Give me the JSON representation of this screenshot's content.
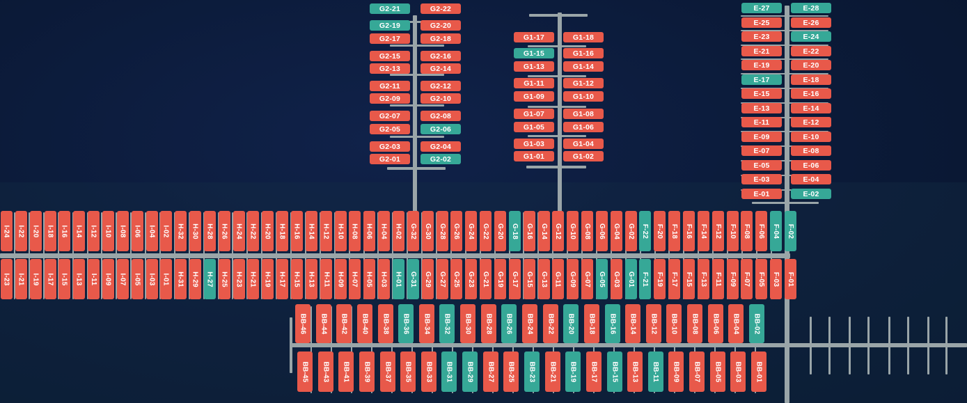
{
  "colors": {
    "occupied": "#e8594a",
    "available": "#36a897",
    "background": "#0b1a36",
    "dock": "#9aa5a8"
  },
  "legend_note": "",
  "slips": {
    "G2": [
      {
        "label": "G2-21",
        "status": "available"
      },
      {
        "label": "G2-22",
        "status": "occupied"
      },
      {
        "label": "G2-19",
        "status": "available"
      },
      {
        "label": "G2-20",
        "status": "occupied"
      },
      {
        "label": "G2-17",
        "status": "occupied"
      },
      {
        "label": "G2-18",
        "status": "occupied"
      },
      {
        "label": "G2-15",
        "status": "occupied"
      },
      {
        "label": "G2-16",
        "status": "occupied"
      },
      {
        "label": "G2-13",
        "status": "occupied"
      },
      {
        "label": "G2-14",
        "status": "occupied"
      },
      {
        "label": "G2-11",
        "status": "occupied"
      },
      {
        "label": "G2-12",
        "status": "occupied"
      },
      {
        "label": "G2-09",
        "status": "occupied"
      },
      {
        "label": "G2-10",
        "status": "occupied"
      },
      {
        "label": "G2-07",
        "status": "occupied"
      },
      {
        "label": "G2-08",
        "status": "occupied"
      },
      {
        "label": "G2-05",
        "status": "occupied"
      },
      {
        "label": "G2-06",
        "status": "available"
      },
      {
        "label": "G2-03",
        "status": "occupied"
      },
      {
        "label": "G2-04",
        "status": "occupied"
      },
      {
        "label": "G2-01",
        "status": "occupied"
      },
      {
        "label": "G2-02",
        "status": "available"
      }
    ],
    "G1": [
      {
        "label": "G1-17",
        "status": "occupied"
      },
      {
        "label": "G1-18",
        "status": "occupied"
      },
      {
        "label": "G1-15",
        "status": "available"
      },
      {
        "label": "G1-16",
        "status": "occupied"
      },
      {
        "label": "G1-13",
        "status": "occupied"
      },
      {
        "label": "G1-14",
        "status": "occupied"
      },
      {
        "label": "G1-11",
        "status": "occupied"
      },
      {
        "label": "G1-12",
        "status": "occupied"
      },
      {
        "label": "G1-09",
        "status": "occupied"
      },
      {
        "label": "G1-10",
        "status": "occupied"
      },
      {
        "label": "G1-07",
        "status": "occupied"
      },
      {
        "label": "G1-08",
        "status": "occupied"
      },
      {
        "label": "G1-05",
        "status": "occupied"
      },
      {
        "label": "G1-06",
        "status": "occupied"
      },
      {
        "label": "G1-03",
        "status": "occupied"
      },
      {
        "label": "G1-04",
        "status": "occupied"
      },
      {
        "label": "G1-01",
        "status": "occupied"
      },
      {
        "label": "G1-02",
        "status": "occupied"
      }
    ],
    "E": [
      {
        "label": "E-27",
        "status": "available"
      },
      {
        "label": "E-28",
        "status": "available"
      },
      {
        "label": "E-25",
        "status": "occupied"
      },
      {
        "label": "E-26",
        "status": "occupied"
      },
      {
        "label": "E-23",
        "status": "occupied"
      },
      {
        "label": "E-24",
        "status": "available"
      },
      {
        "label": "E-21",
        "status": "occupied"
      },
      {
        "label": "E-22",
        "status": "occupied"
      },
      {
        "label": "E-19",
        "status": "occupied"
      },
      {
        "label": "E-20",
        "status": "occupied"
      },
      {
        "label": "E-17",
        "status": "available"
      },
      {
        "label": "E-18",
        "status": "occupied"
      },
      {
        "label": "E-15",
        "status": "occupied"
      },
      {
        "label": "E-16",
        "status": "occupied"
      },
      {
        "label": "E-13",
        "status": "occupied"
      },
      {
        "label": "E-14",
        "status": "occupied"
      },
      {
        "label": "E-11",
        "status": "occupied"
      },
      {
        "label": "E-12",
        "status": "occupied"
      },
      {
        "label": "E-09",
        "status": "occupied"
      },
      {
        "label": "E-10",
        "status": "occupied"
      },
      {
        "label": "E-07",
        "status": "occupied"
      },
      {
        "label": "E-08",
        "status": "occupied"
      },
      {
        "label": "E-05",
        "status": "occupied"
      },
      {
        "label": "E-06",
        "status": "occupied"
      },
      {
        "label": "E-03",
        "status": "occupied"
      },
      {
        "label": "E-04",
        "status": "occupied"
      },
      {
        "label": "E-01",
        "status": "occupied"
      },
      {
        "label": "E-02",
        "status": "available"
      }
    ],
    "main_top": [
      {
        "label": "I-24",
        "status": "occupied"
      },
      {
        "label": "I-22",
        "status": "occupied"
      },
      {
        "label": "I-20",
        "status": "occupied"
      },
      {
        "label": "I-18",
        "status": "occupied"
      },
      {
        "label": "I-16",
        "status": "occupied"
      },
      {
        "label": "I-14",
        "status": "occupied"
      },
      {
        "label": "I-12",
        "status": "occupied"
      },
      {
        "label": "I-10",
        "status": "occupied"
      },
      {
        "label": "I-08",
        "status": "occupied"
      },
      {
        "label": "I-06",
        "status": "occupied"
      },
      {
        "label": "I-04",
        "status": "occupied"
      },
      {
        "label": "I-02",
        "status": "occupied"
      },
      {
        "label": "H-32",
        "status": "occupied"
      },
      {
        "label": "H-30",
        "status": "occupied"
      },
      {
        "label": "H-28",
        "status": "occupied"
      },
      {
        "label": "H-26",
        "status": "occupied"
      },
      {
        "label": "H-24",
        "status": "occupied"
      },
      {
        "label": "H-22",
        "status": "occupied"
      },
      {
        "label": "H-20",
        "status": "occupied"
      },
      {
        "label": "H-18",
        "status": "occupied"
      },
      {
        "label": "H-16",
        "status": "occupied"
      },
      {
        "label": "H-14",
        "status": "occupied"
      },
      {
        "label": "H-12",
        "status": "occupied"
      },
      {
        "label": "H-10",
        "status": "occupied"
      },
      {
        "label": "H-08",
        "status": "occupied"
      },
      {
        "label": "H-06",
        "status": "occupied"
      },
      {
        "label": "H-04",
        "status": "occupied"
      },
      {
        "label": "H-02",
        "status": "occupied"
      },
      {
        "label": "G-32",
        "status": "occupied"
      },
      {
        "label": "G-30",
        "status": "occupied"
      },
      {
        "label": "G-28",
        "status": "occupied"
      },
      {
        "label": "G-26",
        "status": "occupied"
      },
      {
        "label": "G-24",
        "status": "occupied"
      },
      {
        "label": "G-22",
        "status": "occupied"
      },
      {
        "label": "G-20",
        "status": "occupied"
      },
      {
        "label": "G-18",
        "status": "available"
      },
      {
        "label": "G-16",
        "status": "occupied"
      },
      {
        "label": "G-14",
        "status": "occupied"
      },
      {
        "label": "G-12",
        "status": "occupied"
      },
      {
        "label": "G-10",
        "status": "occupied"
      },
      {
        "label": "G-08",
        "status": "occupied"
      },
      {
        "label": "G-06",
        "status": "occupied"
      },
      {
        "label": "G-04",
        "status": "occupied"
      },
      {
        "label": "G-02",
        "status": "occupied"
      },
      {
        "label": "F-22",
        "status": "available"
      },
      {
        "label": "F-20",
        "status": "occupied"
      },
      {
        "label": "F-18",
        "status": "occupied"
      },
      {
        "label": "F-16",
        "status": "occupied"
      },
      {
        "label": "F-14",
        "status": "occupied"
      },
      {
        "label": "F-12",
        "status": "occupied"
      },
      {
        "label": "F-10",
        "status": "occupied"
      },
      {
        "label": "F-08",
        "status": "occupied"
      },
      {
        "label": "F-06",
        "status": "occupied"
      },
      {
        "label": "F-04",
        "status": "available"
      },
      {
        "label": "F-02",
        "status": "available"
      }
    ],
    "main_bottom": [
      {
        "label": "I-23",
        "status": "occupied"
      },
      {
        "label": "I-21",
        "status": "occupied"
      },
      {
        "label": "I-19",
        "status": "occupied"
      },
      {
        "label": "I-17",
        "status": "occupied"
      },
      {
        "label": "I-15",
        "status": "occupied"
      },
      {
        "label": "I-13",
        "status": "occupied"
      },
      {
        "label": "I-11",
        "status": "occupied"
      },
      {
        "label": "I-09",
        "status": "occupied"
      },
      {
        "label": "I-07",
        "status": "occupied"
      },
      {
        "label": "I-05",
        "status": "occupied"
      },
      {
        "label": "I-03",
        "status": "occupied"
      },
      {
        "label": "I-01",
        "status": "occupied"
      },
      {
        "label": "H-31",
        "status": "occupied"
      },
      {
        "label": "H-29",
        "status": "occupied"
      },
      {
        "label": "H-27",
        "status": "available"
      },
      {
        "label": "H-25",
        "status": "occupied"
      },
      {
        "label": "H-23",
        "status": "occupied"
      },
      {
        "label": "H-21",
        "status": "occupied"
      },
      {
        "label": "H-19",
        "status": "occupied"
      },
      {
        "label": "H-17",
        "status": "occupied"
      },
      {
        "label": "H-15",
        "status": "occupied"
      },
      {
        "label": "H-13",
        "status": "occupied"
      },
      {
        "label": "H-11",
        "status": "occupied"
      },
      {
        "label": "H-09",
        "status": "occupied"
      },
      {
        "label": "H-07",
        "status": "occupied"
      },
      {
        "label": "H-05",
        "status": "occupied"
      },
      {
        "label": "H-03",
        "status": "occupied"
      },
      {
        "label": "H-01",
        "status": "available"
      },
      {
        "label": "G-31",
        "status": "available"
      },
      {
        "label": "G-29",
        "status": "occupied"
      },
      {
        "label": "G-27",
        "status": "occupied"
      },
      {
        "label": "G-25",
        "status": "occupied"
      },
      {
        "label": "G-23",
        "status": "occupied"
      },
      {
        "label": "G-21",
        "status": "occupied"
      },
      {
        "label": "G-19",
        "status": "occupied"
      },
      {
        "label": "G-17",
        "status": "occupied"
      },
      {
        "label": "G-15",
        "status": "occupied"
      },
      {
        "label": "G-13",
        "status": "occupied"
      },
      {
        "label": "G-11",
        "status": "occupied"
      },
      {
        "label": "G-09",
        "status": "occupied"
      },
      {
        "label": "G-07",
        "status": "occupied"
      },
      {
        "label": "G-05",
        "status": "available"
      },
      {
        "label": "G-03",
        "status": "occupied"
      },
      {
        "label": "G-01",
        "status": "available"
      },
      {
        "label": "F-21",
        "status": "available"
      },
      {
        "label": "F-19",
        "status": "occupied"
      },
      {
        "label": "F-17",
        "status": "occupied"
      },
      {
        "label": "F-15",
        "status": "occupied"
      },
      {
        "label": "F-13",
        "status": "occupied"
      },
      {
        "label": "F-11",
        "status": "occupied"
      },
      {
        "label": "F-09",
        "status": "occupied"
      },
      {
        "label": "F-07",
        "status": "occupied"
      },
      {
        "label": "F-05",
        "status": "occupied"
      },
      {
        "label": "F-03",
        "status": "occupied"
      },
      {
        "label": "F-01",
        "status": "occupied"
      }
    ],
    "bb_top": [
      {
        "label": "BB-46",
        "status": "occupied"
      },
      {
        "label": "BB-44",
        "status": "occupied"
      },
      {
        "label": "BB-42",
        "status": "occupied"
      },
      {
        "label": "BB-40",
        "status": "occupied"
      },
      {
        "label": "BB-38",
        "status": "occupied"
      },
      {
        "label": "BB-36",
        "status": "available"
      },
      {
        "label": "BB-34",
        "status": "occupied"
      },
      {
        "label": "BB-32",
        "status": "available"
      },
      {
        "label": "BB-30",
        "status": "occupied"
      },
      {
        "label": "BB-28",
        "status": "occupied"
      },
      {
        "label": "BB-26",
        "status": "available"
      },
      {
        "label": "BB-24",
        "status": "occupied"
      },
      {
        "label": "BB-22",
        "status": "occupied"
      },
      {
        "label": "BB-20",
        "status": "available"
      },
      {
        "label": "BB-18",
        "status": "occupied"
      },
      {
        "label": "BB-16",
        "status": "available"
      },
      {
        "label": "BB-14",
        "status": "occupied"
      },
      {
        "label": "BB-12",
        "status": "occupied"
      },
      {
        "label": "BB-10",
        "status": "occupied"
      },
      {
        "label": "BB-08",
        "status": "occupied"
      },
      {
        "label": "BB-06",
        "status": "occupied"
      },
      {
        "label": "BB-04",
        "status": "occupied"
      },
      {
        "label": "BB-02",
        "status": "available"
      }
    ],
    "bb_bottom": [
      {
        "label": "BB-45",
        "status": "occupied"
      },
      {
        "label": "BB-43",
        "status": "occupied"
      },
      {
        "label": "BB-41",
        "status": "occupied"
      },
      {
        "label": "BB-39",
        "status": "occupied"
      },
      {
        "label": "BB-37",
        "status": "occupied"
      },
      {
        "label": "BB-35",
        "status": "occupied"
      },
      {
        "label": "BB-33",
        "status": "occupied"
      },
      {
        "label": "BB-31",
        "status": "available"
      },
      {
        "label": "BB-29",
        "status": "available"
      },
      {
        "label": "BB-27",
        "status": "occupied"
      },
      {
        "label": "BB-25",
        "status": "occupied"
      },
      {
        "label": "BB-23",
        "status": "available"
      },
      {
        "label": "BB-21",
        "status": "occupied"
      },
      {
        "label": "BB-19",
        "status": "available"
      },
      {
        "label": "BB-17",
        "status": "occupied"
      },
      {
        "label": "BB-15",
        "status": "available"
      },
      {
        "label": "BB-13",
        "status": "occupied"
      },
      {
        "label": "BB-11",
        "status": "available"
      },
      {
        "label": "BB-09",
        "status": "occupied"
      },
      {
        "label": "BB-07",
        "status": "occupied"
      },
      {
        "label": "BB-05",
        "status": "occupied"
      },
      {
        "label": "BB-03",
        "status": "occupied"
      },
      {
        "label": "BB-01",
        "status": "occupied"
      }
    ]
  }
}
